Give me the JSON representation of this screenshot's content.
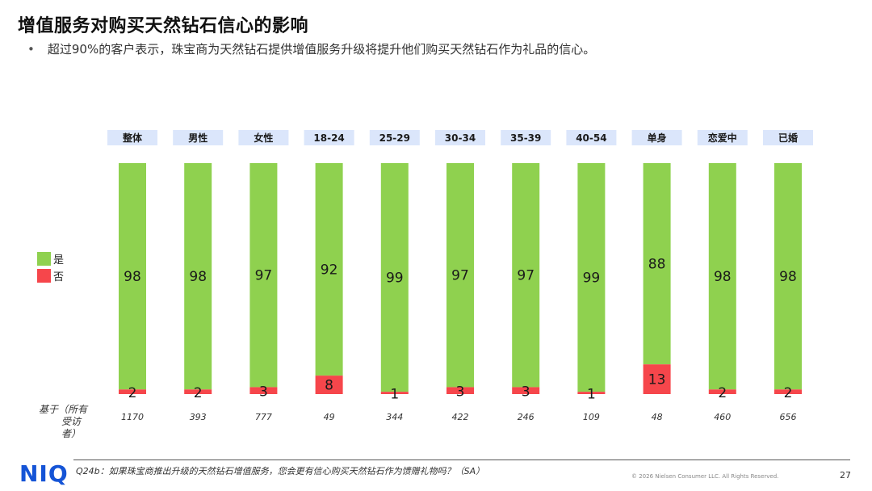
{
  "title": "增值服务对购买天然钻石信心的影响",
  "subtitle": "超过90%的客户表示，珠宝商为天然钻石提供增值服务升级将提升他们购买天然钻石作为礼品的信心。",
  "bullet": "•",
  "legend": {
    "yes_label": "是",
    "no_label": "否",
    "yes_color": "#8fd14f",
    "no_color": "#f6464b"
  },
  "base_label_line1": "基于（所有",
  "base_label_line2": "受访者）",
  "chart_data": {
    "type": "bar",
    "stacked": true,
    "categories": [
      "整体",
      "男性",
      "女性",
      "18-24",
      "25-29",
      "30-34",
      "35-39",
      "40-54",
      "单身",
      "恋爱中",
      "已婚"
    ],
    "series": [
      {
        "name": "是",
        "values": [
          98,
          98,
          97,
          92,
          99,
          97,
          97,
          99,
          88,
          98,
          98
        ]
      },
      {
        "name": "否",
        "values": [
          2,
          2,
          3,
          8,
          1,
          3,
          3,
          1,
          13,
          2,
          2
        ]
      }
    ],
    "bases": [
      "1170",
      "393",
      "777",
      "49",
      "344",
      "422",
      "246",
      "109",
      "48",
      "460",
      "656"
    ],
    "ylim": [
      0,
      100
    ],
    "header_color": "#dbe6fb"
  },
  "footer": {
    "logo": "NIQ",
    "question": "Q24b：如果珠宝商推出升级的天然钻石增值服务，您会更有信心购买天然钻石作为馈赠礼物吗？（SA）",
    "copyright": "© 2026 Nielsen Consumer LLC. All Rights Reserved.",
    "page": "27"
  }
}
